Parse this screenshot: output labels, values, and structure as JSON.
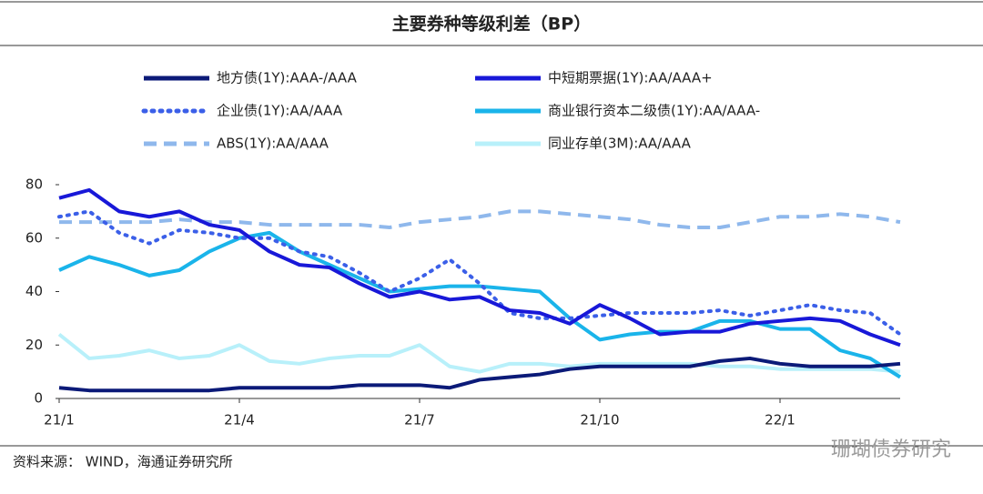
{
  "chart_data": {
    "type": "line",
    "title": "主要券种等级利差（BP）",
    "source": "资料来源：  WIND，海通证券研究所",
    "watermark": "珊瑚债券研究",
    "categories": [
      "21/1",
      null,
      null,
      null,
      null,
      null,
      "21/4",
      null,
      null,
      null,
      null,
      null,
      "21/7",
      null,
      null,
      null,
      null,
      null,
      "21/10",
      null,
      null,
      null,
      null,
      null,
      "22/1",
      null,
      null,
      null,
      null
    ],
    "ylim": [
      0,
      80
    ],
    "yticks": [
      0,
      20,
      40,
      60,
      80
    ],
    "series": [
      {
        "name": "地方债(1Y):AAA-/AAA",
        "color": "#0b1a78",
        "style": "solid",
        "values": [
          4,
          3,
          3,
          3,
          3,
          3,
          4,
          4,
          4,
          4,
          5,
          5,
          5,
          4,
          7,
          8,
          9,
          11,
          12,
          12,
          12,
          12,
          14,
          15,
          13,
          12,
          12,
          12,
          13
        ]
      },
      {
        "name": "中短期票据(1Y):AA/AAA+",
        "color": "#1818d8",
        "style": "solid",
        "values": [
          75,
          78,
          70,
          68,
          70,
          65,
          63,
          55,
          50,
          49,
          43,
          38,
          40,
          37,
          38,
          33,
          32,
          28,
          35,
          30,
          24,
          25,
          25,
          28,
          29,
          30,
          29,
          24,
          20
        ]
      },
      {
        "name": "企业债(1Y):AA/AAA",
        "color": "#3b5fe8",
        "style": "dotted",
        "values": [
          68,
          70,
          62,
          58,
          63,
          62,
          60,
          60,
          55,
          53,
          47,
          40,
          45,
          52,
          43,
          32,
          30,
          30,
          31,
          32,
          32,
          32,
          33,
          31,
          33,
          35,
          33,
          32,
          24
        ]
      },
      {
        "name": "商业银行资本二级债(1Y):AA/AAA-",
        "color": "#1ab4ea",
        "style": "solid",
        "values": [
          48,
          53,
          50,
          46,
          48,
          55,
          60,
          62,
          55,
          50,
          45,
          40,
          41,
          42,
          42,
          41,
          40,
          30,
          22,
          24,
          25,
          25,
          29,
          29,
          26,
          26,
          18,
          15,
          8
        ]
      },
      {
        "name": "ABS(1Y):AA/AAA",
        "color": "#8fb8ec",
        "style": "dashed",
        "values": [
          66,
          66,
          66,
          66,
          67,
          66,
          66,
          65,
          65,
          65,
          65,
          64,
          66,
          67,
          68,
          70,
          70,
          69,
          68,
          67,
          65,
          64,
          64,
          66,
          68,
          68,
          69,
          68,
          66
        ]
      },
      {
        "name": "同业存单(3M):AA/AAA",
        "color": "#b8f0fa",
        "style": "solid",
        "values": [
          24,
          15,
          16,
          18,
          15,
          16,
          20,
          14,
          13,
          15,
          16,
          16,
          20,
          12,
          10,
          13,
          13,
          12,
          13,
          13,
          13,
          13,
          12,
          12,
          11,
          11,
          11,
          11,
          10
        ]
      }
    ]
  }
}
